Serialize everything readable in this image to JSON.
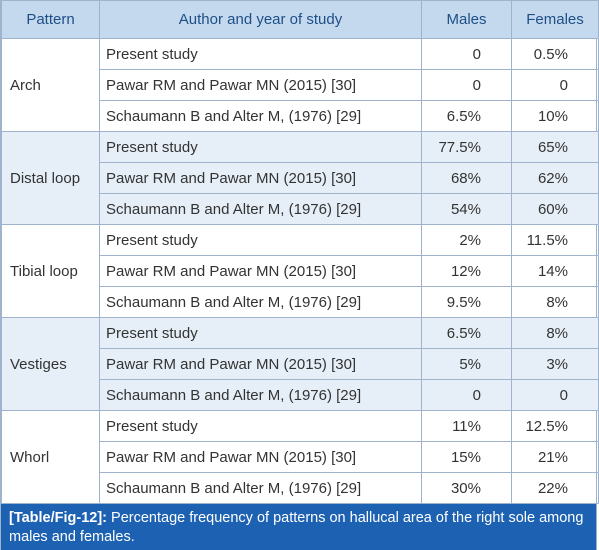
{
  "table": {
    "header": [
      "Pattern",
      "Author and year of study",
      "Males",
      "Females"
    ],
    "groups": [
      {
        "pattern": "Arch",
        "rows": [
          [
            "Present study",
            "0",
            "0.5%"
          ],
          [
            "Pawar RM and Pawar MN (2015) [30]",
            "0",
            "0"
          ],
          [
            "Schaumann B and Alter M, (1976) [29]",
            "6.5%",
            "10%"
          ]
        ]
      },
      {
        "pattern": "Distal loop",
        "rows": [
          [
            "Present study",
            "77.5%",
            "65%"
          ],
          [
            "Pawar RM and Pawar MN (2015) [30]",
            "68%",
            "62%"
          ],
          [
            "Schaumann B and Alter M, (1976) [29]",
            "54%",
            "60%"
          ]
        ]
      },
      {
        "pattern": "Tibial loop",
        "rows": [
          [
            "Present study",
            "2%",
            "11.5%"
          ],
          [
            "Pawar RM and Pawar MN (2015) [30]",
            "12%",
            "14%"
          ],
          [
            "Schaumann B and Alter M, (1976) [29]",
            "9.5%",
            "8%"
          ]
        ]
      },
      {
        "pattern": "Vestiges",
        "rows": [
          [
            "Present study",
            "6.5%",
            "8%"
          ],
          [
            "Pawar RM and Pawar MN (2015) [30]",
            "5%",
            "3%"
          ],
          [
            "Schaumann B and Alter M, (1976) [29]",
            "0",
            "0"
          ]
        ]
      },
      {
        "pattern": "Whorl",
        "rows": [
          [
            "Present study",
            "11%",
            "12.5%"
          ],
          [
            "Pawar RM and Pawar MN (2015) [30]",
            "15%",
            "21%"
          ],
          [
            "Schaumann B and Alter M, (1976) [29]",
            "30%",
            "22%"
          ]
        ]
      }
    ]
  },
  "caption": {
    "label": "[Table/Fig-12]:",
    "text": "Percentage frequency of patterns on hallucal area of the right sole among males and females."
  }
}
